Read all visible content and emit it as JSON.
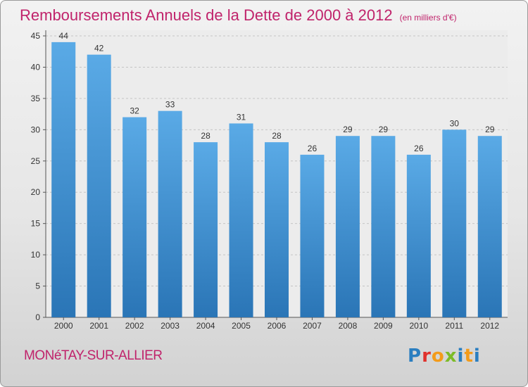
{
  "title": "Remboursements Annuels de la Dette de 2000 à 2012",
  "unit": "(en milliers d'€)",
  "commune": "MONéTAY-SUR-ALLIER",
  "logo": {
    "text": "Proxiti",
    "colors": [
      "#2a7ec0",
      "#e0312c",
      "#f39b1a",
      "#7cbb27",
      "#2a7ec0",
      "#f39b1a"
    ]
  },
  "colors": {
    "bar_light": "#5aaae6",
    "bar_dark": "#2a75b6",
    "accent": "#c0236b"
  },
  "chart_data": {
    "type": "bar",
    "title": "Remboursements Annuels de la Dette de 2000 à 2012",
    "xlabel": "",
    "ylabel": "",
    "categories": [
      "2000",
      "2001",
      "2002",
      "2003",
      "2004",
      "2005",
      "2006",
      "2007",
      "2008",
      "2009",
      "2010",
      "2011",
      "2012"
    ],
    "values": [
      44,
      42,
      32,
      33,
      28,
      31,
      28,
      26,
      29,
      29,
      26,
      30,
      29
    ],
    "ylim": [
      0,
      45
    ],
    "yticks": [
      0,
      5,
      10,
      15,
      20,
      25,
      30,
      35,
      40,
      45
    ],
    "grid": true,
    "legend": "none"
  }
}
